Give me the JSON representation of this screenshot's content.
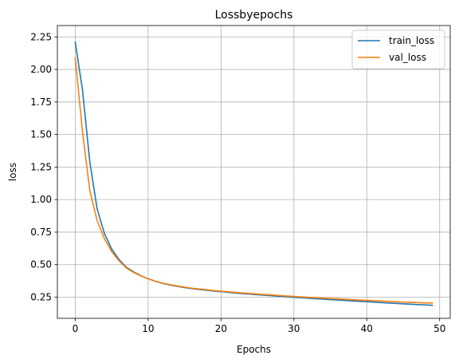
{
  "chart_data": {
    "type": "line",
    "title": "Lossbyepochs",
    "xlabel": "Epochs",
    "ylabel": "loss",
    "xlim": [
      -2.45,
      51.45
    ],
    "ylim": [
      0.0875,
      2.3375
    ],
    "xticks": [
      0,
      10,
      20,
      30,
      40,
      50
    ],
    "yticks": [
      0.25,
      0.5,
      0.75,
      1.0,
      1.25,
      1.5,
      1.75,
      2.0,
      2.25
    ],
    "grid": true,
    "legend_position": "top-right",
    "x": [
      0,
      1,
      2,
      3,
      4,
      5,
      6,
      7,
      8,
      9,
      10,
      11,
      12,
      13,
      14,
      15,
      16,
      17,
      18,
      19,
      20,
      21,
      22,
      23,
      24,
      25,
      26,
      27,
      28,
      29,
      30,
      31,
      32,
      33,
      34,
      35,
      36,
      37,
      38,
      39,
      40,
      41,
      42,
      43,
      44,
      45,
      46,
      47,
      48,
      49
    ],
    "series": [
      {
        "name": "train_loss",
        "color": "#1f77b4",
        "values": [
          2.21,
          1.84,
          1.29,
          0.93,
          0.74,
          0.62,
          0.54,
          0.48,
          0.445,
          0.415,
          0.392,
          0.372,
          0.356,
          0.344,
          0.333,
          0.324,
          0.316,
          0.309,
          0.303,
          0.297,
          0.292,
          0.287,
          0.282,
          0.277,
          0.273,
          0.269,
          0.265,
          0.261,
          0.257,
          0.253,
          0.249,
          0.246,
          0.242,
          0.238,
          0.235,
          0.231,
          0.228,
          0.225,
          0.221,
          0.218,
          0.215,
          0.212,
          0.208,
          0.205,
          0.202,
          0.199,
          0.196,
          0.193,
          0.191,
          0.188
        ]
      },
      {
        "name": "val_loss",
        "color": "#ff7f0e",
        "values": [
          2.09,
          1.52,
          1.07,
          0.84,
          0.7,
          0.6,
          0.53,
          0.475,
          0.44,
          0.413,
          0.391,
          0.373,
          0.358,
          0.346,
          0.336,
          0.327,
          0.319,
          0.313,
          0.307,
          0.301,
          0.296,
          0.291,
          0.287,
          0.282,
          0.278,
          0.274,
          0.27,
          0.267,
          0.263,
          0.259,
          0.256,
          0.252,
          0.249,
          0.246,
          0.243,
          0.24,
          0.237,
          0.234,
          0.231,
          0.228,
          0.226,
          0.223,
          0.22,
          0.218,
          0.215,
          0.213,
          0.21,
          0.208,
          0.206,
          0.205
        ]
      }
    ]
  }
}
